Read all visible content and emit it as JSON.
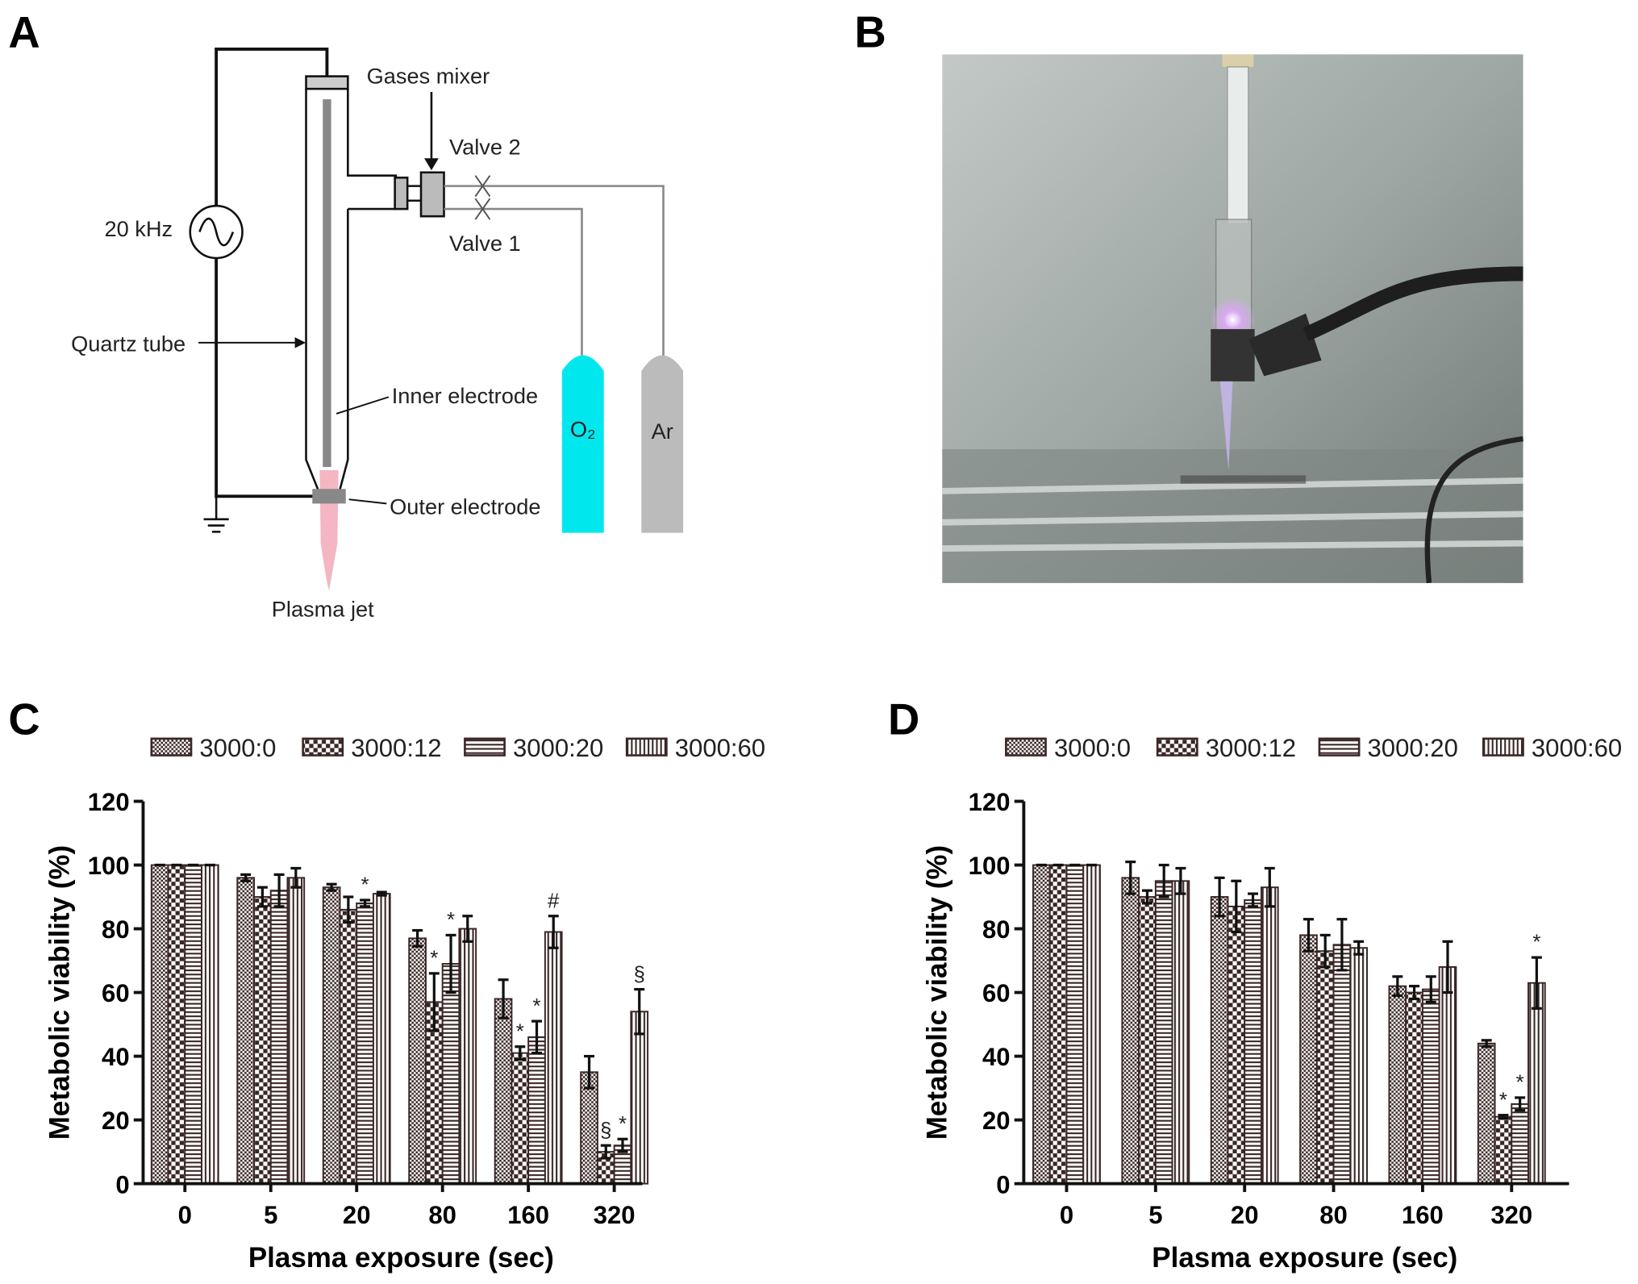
{
  "panel_labels": [
    "A",
    "B",
    "C",
    "D"
  ],
  "diagram": {
    "labels": {
      "gases_mixer": "Gases mixer",
      "valve2": "Valve 2",
      "source": "20 kHz",
      "valve1": "Valve 1",
      "quartz_tube": "Quartz tube",
      "inner_electrode": "Inner electrode",
      "o2": "O₂",
      "ar": "Ar",
      "outer_electrode": "Outer electrode",
      "plasma_jet": "Plasma jet"
    }
  },
  "chart_data": [
    {
      "type": "bar",
      "x_label": "Plasma exposure (sec)",
      "y_label": "Metabolic viability (%)",
      "categories": [
        "0",
        "5",
        "20",
        "80",
        "160",
        "320"
      ],
      "ylim": [
        0,
        120
      ],
      "yticks": [
        0,
        20,
        40,
        60,
        80,
        100,
        120
      ],
      "series": [
        {
          "name": "3000:0",
          "color": "#3a2626",
          "pattern": "crosshatch",
          "values": [
            100,
            96,
            93,
            77,
            58,
            35
          ],
          "errors": [
            0,
            1,
            1,
            2.5,
            6,
            5
          ],
          "annotations": [
            null,
            null,
            null,
            null,
            null,
            null
          ]
        },
        {
          "name": "3000:12",
          "color": "#3a2626",
          "pattern": "checker",
          "values": [
            100,
            90,
            86,
            57,
            41,
            10
          ],
          "errors": [
            0,
            3,
            4,
            9,
            2,
            2
          ],
          "annotations": [
            null,
            null,
            null,
            "*",
            "*",
            "§"
          ]
        },
        {
          "name": "3000:20",
          "color": "#3a2626",
          "pattern": "horizontal",
          "values": [
            100,
            92,
            88,
            69,
            46,
            12
          ],
          "errors": [
            0,
            5,
            1,
            9,
            5,
            2
          ],
          "annotations": [
            null,
            null,
            "*",
            "*",
            "*",
            "*"
          ]
        },
        {
          "name": "3000:60",
          "color": "#3a2626",
          "pattern": "vertical",
          "values": [
            100,
            96,
            91,
            80,
            79,
            54
          ],
          "errors": [
            0,
            3,
            0.5,
            4,
            5,
            7
          ],
          "annotations": [
            null,
            null,
            null,
            null,
            "#",
            "§"
          ]
        }
      ]
    },
    {
      "type": "bar",
      "x_label": "Plasma exposure (sec)",
      "y_label": "Metabolic viability (%)",
      "categories": [
        "0",
        "5",
        "20",
        "80",
        "160",
        "320"
      ],
      "ylim": [
        0,
        120
      ],
      "yticks": [
        0,
        20,
        40,
        60,
        80,
        100,
        120
      ],
      "series": [
        {
          "name": "3000:0",
          "color": "#3a2626",
          "pattern": "crosshatch",
          "values": [
            100,
            96,
            90,
            78,
            62,
            44
          ],
          "errors": [
            0,
            5,
            6,
            5,
            3,
            1
          ],
          "annotations": [
            null,
            null,
            null,
            null,
            null,
            null
          ]
        },
        {
          "name": "3000:12",
          "color": "#3a2626",
          "pattern": "checker",
          "values": [
            100,
            90,
            87,
            73,
            60,
            21
          ],
          "errors": [
            0,
            2,
            8,
            5,
            2,
            0.5
          ],
          "annotations": [
            null,
            null,
            null,
            null,
            null,
            "*"
          ]
        },
        {
          "name": "3000:20",
          "color": "#3a2626",
          "pattern": "horizontal",
          "values": [
            100,
            95,
            89,
            75,
            61,
            25
          ],
          "errors": [
            0,
            5,
            2,
            8,
            4,
            2
          ],
          "annotations": [
            null,
            null,
            null,
            null,
            null,
            "*"
          ]
        },
        {
          "name": "3000:60",
          "color": "#3a2626",
          "pattern": "vertical",
          "values": [
            100,
            95,
            93,
            74,
            68,
            63
          ],
          "errors": [
            0,
            4,
            6,
            2,
            8,
            8
          ],
          "annotations": [
            null,
            null,
            null,
            null,
            null,
            "*"
          ]
        }
      ]
    }
  ]
}
